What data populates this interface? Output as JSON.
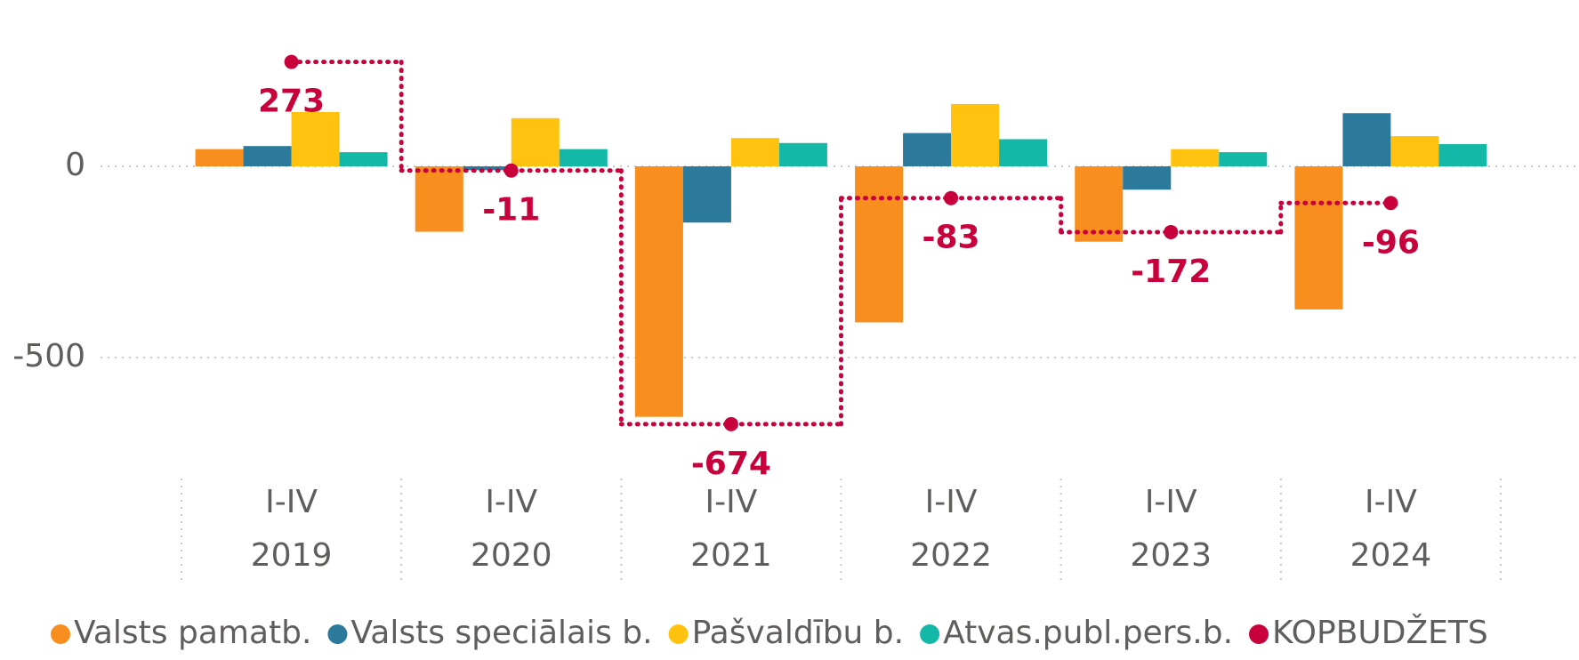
{
  "chart_data": {
    "type": "bar",
    "categories": [
      [
        "I-IV",
        "2019"
      ],
      [
        "I-IV",
        "2020"
      ],
      [
        "I-IV",
        "2021"
      ],
      [
        "I-IV",
        "2022"
      ],
      [
        "I-IV",
        "2023"
      ],
      [
        "I-IV",
        "2024"
      ]
    ],
    "series": [
      {
        "name": "Valsts pamatb.",
        "color": "#f78e1e",
        "values": [
          45,
          -171,
          -655,
          -408,
          -197,
          -374
        ]
      },
      {
        "name": "Valsts speciālais b.",
        "color": "#2b7a9b",
        "values": [
          53,
          -10,
          -147,
          87,
          -61,
          139
        ]
      },
      {
        "name": "Pašvaldību b.",
        "color": "#ffc20e",
        "values": [
          142,
          126,
          74,
          163,
          45,
          79
        ]
      },
      {
        "name": "Atvas.publ.pers.b.",
        "color": "#14b8a6",
        "values": [
          37,
          45,
          61,
          71,
          37,
          58
        ]
      },
      {
        "name": "KOPBUDŽETS",
        "color": "#c8003c",
        "type": "step",
        "values": [
          273,
          -11,
          -674,
          -83,
          -172,
          -96
        ]
      }
    ],
    "ylim": [
      -800,
      320
    ],
    "yticks": [
      -500,
      0
    ],
    "grid": true,
    "legend": "bottom"
  }
}
